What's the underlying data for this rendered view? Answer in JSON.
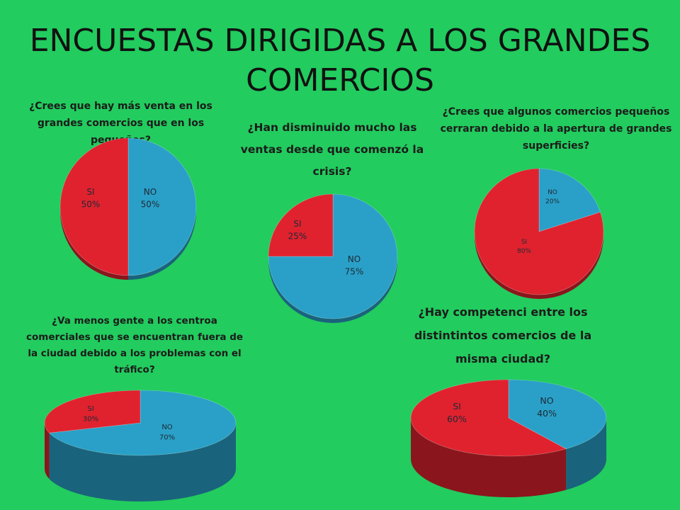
{
  "title": "ENCUESTAS DIRIGIDAS A LOS GRANDES COMERCIOS",
  "colors": {
    "background": "#22cc5e",
    "si": "#e0222f",
    "no": "#2aa0c8"
  },
  "chart_data": [
    {
      "type": "pie",
      "title": "¿Crees que hay más venta en los grandes comercios que en los pequeños?",
      "slices": [
        {
          "label": "NO",
          "value": 50,
          "pct": "50%"
        },
        {
          "label": "SI",
          "value": 50,
          "pct": "50%"
        }
      ]
    },
    {
      "type": "pie",
      "title": "¿Han disminuido mucho las ventas desde que comenzó la crisis?",
      "slices": [
        {
          "label": "NO",
          "value": 75,
          "pct": "75%"
        },
        {
          "label": "SI",
          "value": 25,
          "pct": "25%"
        }
      ]
    },
    {
      "type": "pie",
      "title": "¿Crees que algunos comercios pequeños cerraran debido a la apertura de grandes superficies?",
      "slices": [
        {
          "label": "NO",
          "value": 20,
          "pct": "20%"
        },
        {
          "label": "SI",
          "value": 80,
          "pct": "80%"
        }
      ]
    },
    {
      "type": "pie",
      "title": "¿Va menos gente a los centroa comerciales que se encuentran fuera de la ciudad debido a los problemas con el tráfico?",
      "slices": [
        {
          "label": "NO",
          "value": 70,
          "pct": "70%"
        },
        {
          "label": "SI",
          "value": 30,
          "pct": "30%"
        }
      ]
    },
    {
      "type": "pie",
      "title": "¿Hay competenci entre los distintintos comercios de la misma ciudad?",
      "slices": [
        {
          "label": "NO",
          "value": 40,
          "pct": "40%"
        },
        {
          "label": "SI",
          "value": 60,
          "pct": "60%"
        }
      ]
    }
  ]
}
